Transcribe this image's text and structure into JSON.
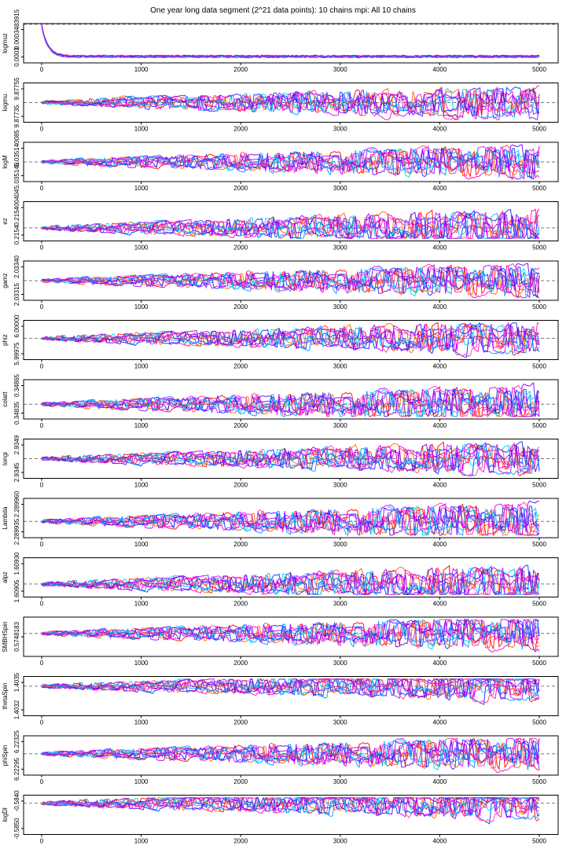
{
  "chart_data": {
    "type": "line",
    "title": "One year long data segment (2^21 data points): 10 chains mpi: All 10 chains",
    "xlim": [
      0,
      5000
    ],
    "x_ticks": [
      0,
      1000,
      2000,
      3000,
      4000,
      5000
    ],
    "n_chains": 10,
    "chain_colors": [
      "#ff0000",
      "#ff6600",
      "#ff00cc",
      "#cc00ff",
      "#6600ff",
      "#0033ff",
      "#0099ff",
      "#00ccff",
      "#ff3399",
      "#9900ff"
    ],
    "panels": [
      {
        "name": "logmuz",
        "ytick_labels": [
          "0.0003",
          "0.0003483915"
        ],
        "true_value": 1.0,
        "spread": 0.08,
        "burnin": true
      },
      {
        "name": "logmu",
        "ytick_labels": [
          "9.87735",
          "9.87755"
        ],
        "true_value": 0.5,
        "spread": 0.45
      },
      {
        "name": "logM",
        "ytick_labels": [
          "5.035140",
          "5.035140085"
        ],
        "true_value": 0.5,
        "spread": 0.45
      },
      {
        "name": "ez",
        "ytick_labels": [
          "0.2154",
          "0.215400404"
        ],
        "true_value": 0.3,
        "spread": 0.5
      },
      {
        "name": "gamz",
        "ytick_labels": [
          "2.03315",
          "2.03340"
        ],
        "true_value": 0.5,
        "spread": 0.45
      },
      {
        "name": "phiz",
        "ytick_labels": [
          "5.99975",
          "6.00000"
        ],
        "true_value": 0.55,
        "spread": 0.45
      },
      {
        "name": "colatt",
        "ytick_labels": [
          "0.34835",
          "0.34865"
        ],
        "true_value": 0.35,
        "spread": 0.5
      },
      {
        "name": "longi",
        "ytick_labels": [
          "2.9345",
          "2.9349"
        ],
        "true_value": 0.5,
        "spread": 0.45
      },
      {
        "name": "Lambda",
        "ytick_labels": [
          "2.289935",
          "2.289960"
        ],
        "true_value": 0.4,
        "spread": 0.5
      },
      {
        "name": "alpz",
        "ytick_labels": [
          "1.60905",
          "1.60930"
        ],
        "true_value": 0.3,
        "spread": 0.5
      },
      {
        "name": "SMBHSpin",
        "ytick_labels": [
          "0.5748183"
        ],
        "true_value": 0.6,
        "spread": 0.45
      },
      {
        "name": "thetaSpin",
        "ytick_labels": [
          "1.4032",
          "1.4035"
        ],
        "true_value": 0.8,
        "spread": 0.4
      },
      {
        "name": "phiSpin",
        "ytick_labels": [
          "6.22295",
          "6.22325"
        ],
        "true_value": 0.55,
        "spread": 0.45
      },
      {
        "name": "logDl",
        "ytick_labels": [
          "-0.5850",
          "-0.5840"
        ],
        "true_value": 0.85,
        "spread": 0.45
      }
    ]
  }
}
